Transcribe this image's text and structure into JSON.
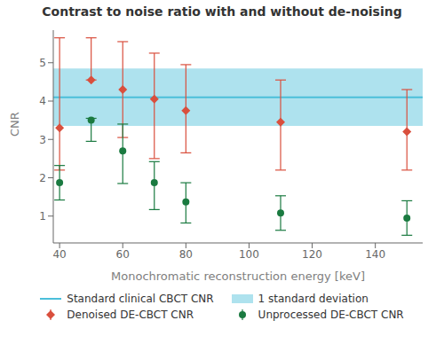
{
  "chart_data": {
    "type": "scatter",
    "title": "Contrast to noise ratio with and without de-noising",
    "xlabel": "Monochromatic reconstruction energy [keV]",
    "ylabel": "CNR",
    "xlim": [
      38,
      155
    ],
    "ylim": [
      0.3,
      5.85
    ],
    "xticks": [
      40,
      60,
      80,
      100,
      120,
      140
    ],
    "yticks": [
      1,
      2,
      3,
      4,
      5
    ],
    "grid": false,
    "legend": "bottom",
    "series": [
      {
        "name": "Standard clinical CBCT CNR",
        "type": "hline",
        "color": "#4bbfda",
        "values": [
          4.1
        ]
      },
      {
        "name": "1 standard deviation",
        "type": "band",
        "color": "#4bbfda",
        "y_range": [
          3.35,
          4.85
        ]
      },
      {
        "name": "Denoised DE-CBCT CNR",
        "type": "scatter",
        "color": "#d94f3d",
        "marker": "diamond",
        "x": [
          40,
          50,
          60,
          70,
          80,
          110,
          150
        ],
        "values": [
          3.3,
          4.55,
          4.3,
          4.05,
          3.75,
          3.45,
          3.2
        ],
        "error_down": [
          1.1,
          0.0,
          1.25,
          1.55,
          1.1,
          1.25,
          1.0
        ],
        "error_up": [
          2.35,
          1.1,
          1.25,
          1.2,
          1.2,
          1.1,
          1.1
        ]
      },
      {
        "name": "Unprocessed DE-CBCT CNR",
        "type": "scatter",
        "color": "#1a7a40",
        "marker": "circle",
        "x": [
          40,
          50,
          60,
          70,
          80,
          110,
          150
        ],
        "values": [
          1.87,
          3.5,
          2.7,
          1.87,
          1.37,
          1.08,
          0.95
        ],
        "error_down": [
          0.45,
          0.55,
          0.85,
          0.7,
          0.55,
          0.45,
          0.45
        ],
        "error_up": [
          0.45,
          0.05,
          0.7,
          0.55,
          0.5,
          0.45,
          0.45
        ]
      }
    ]
  }
}
